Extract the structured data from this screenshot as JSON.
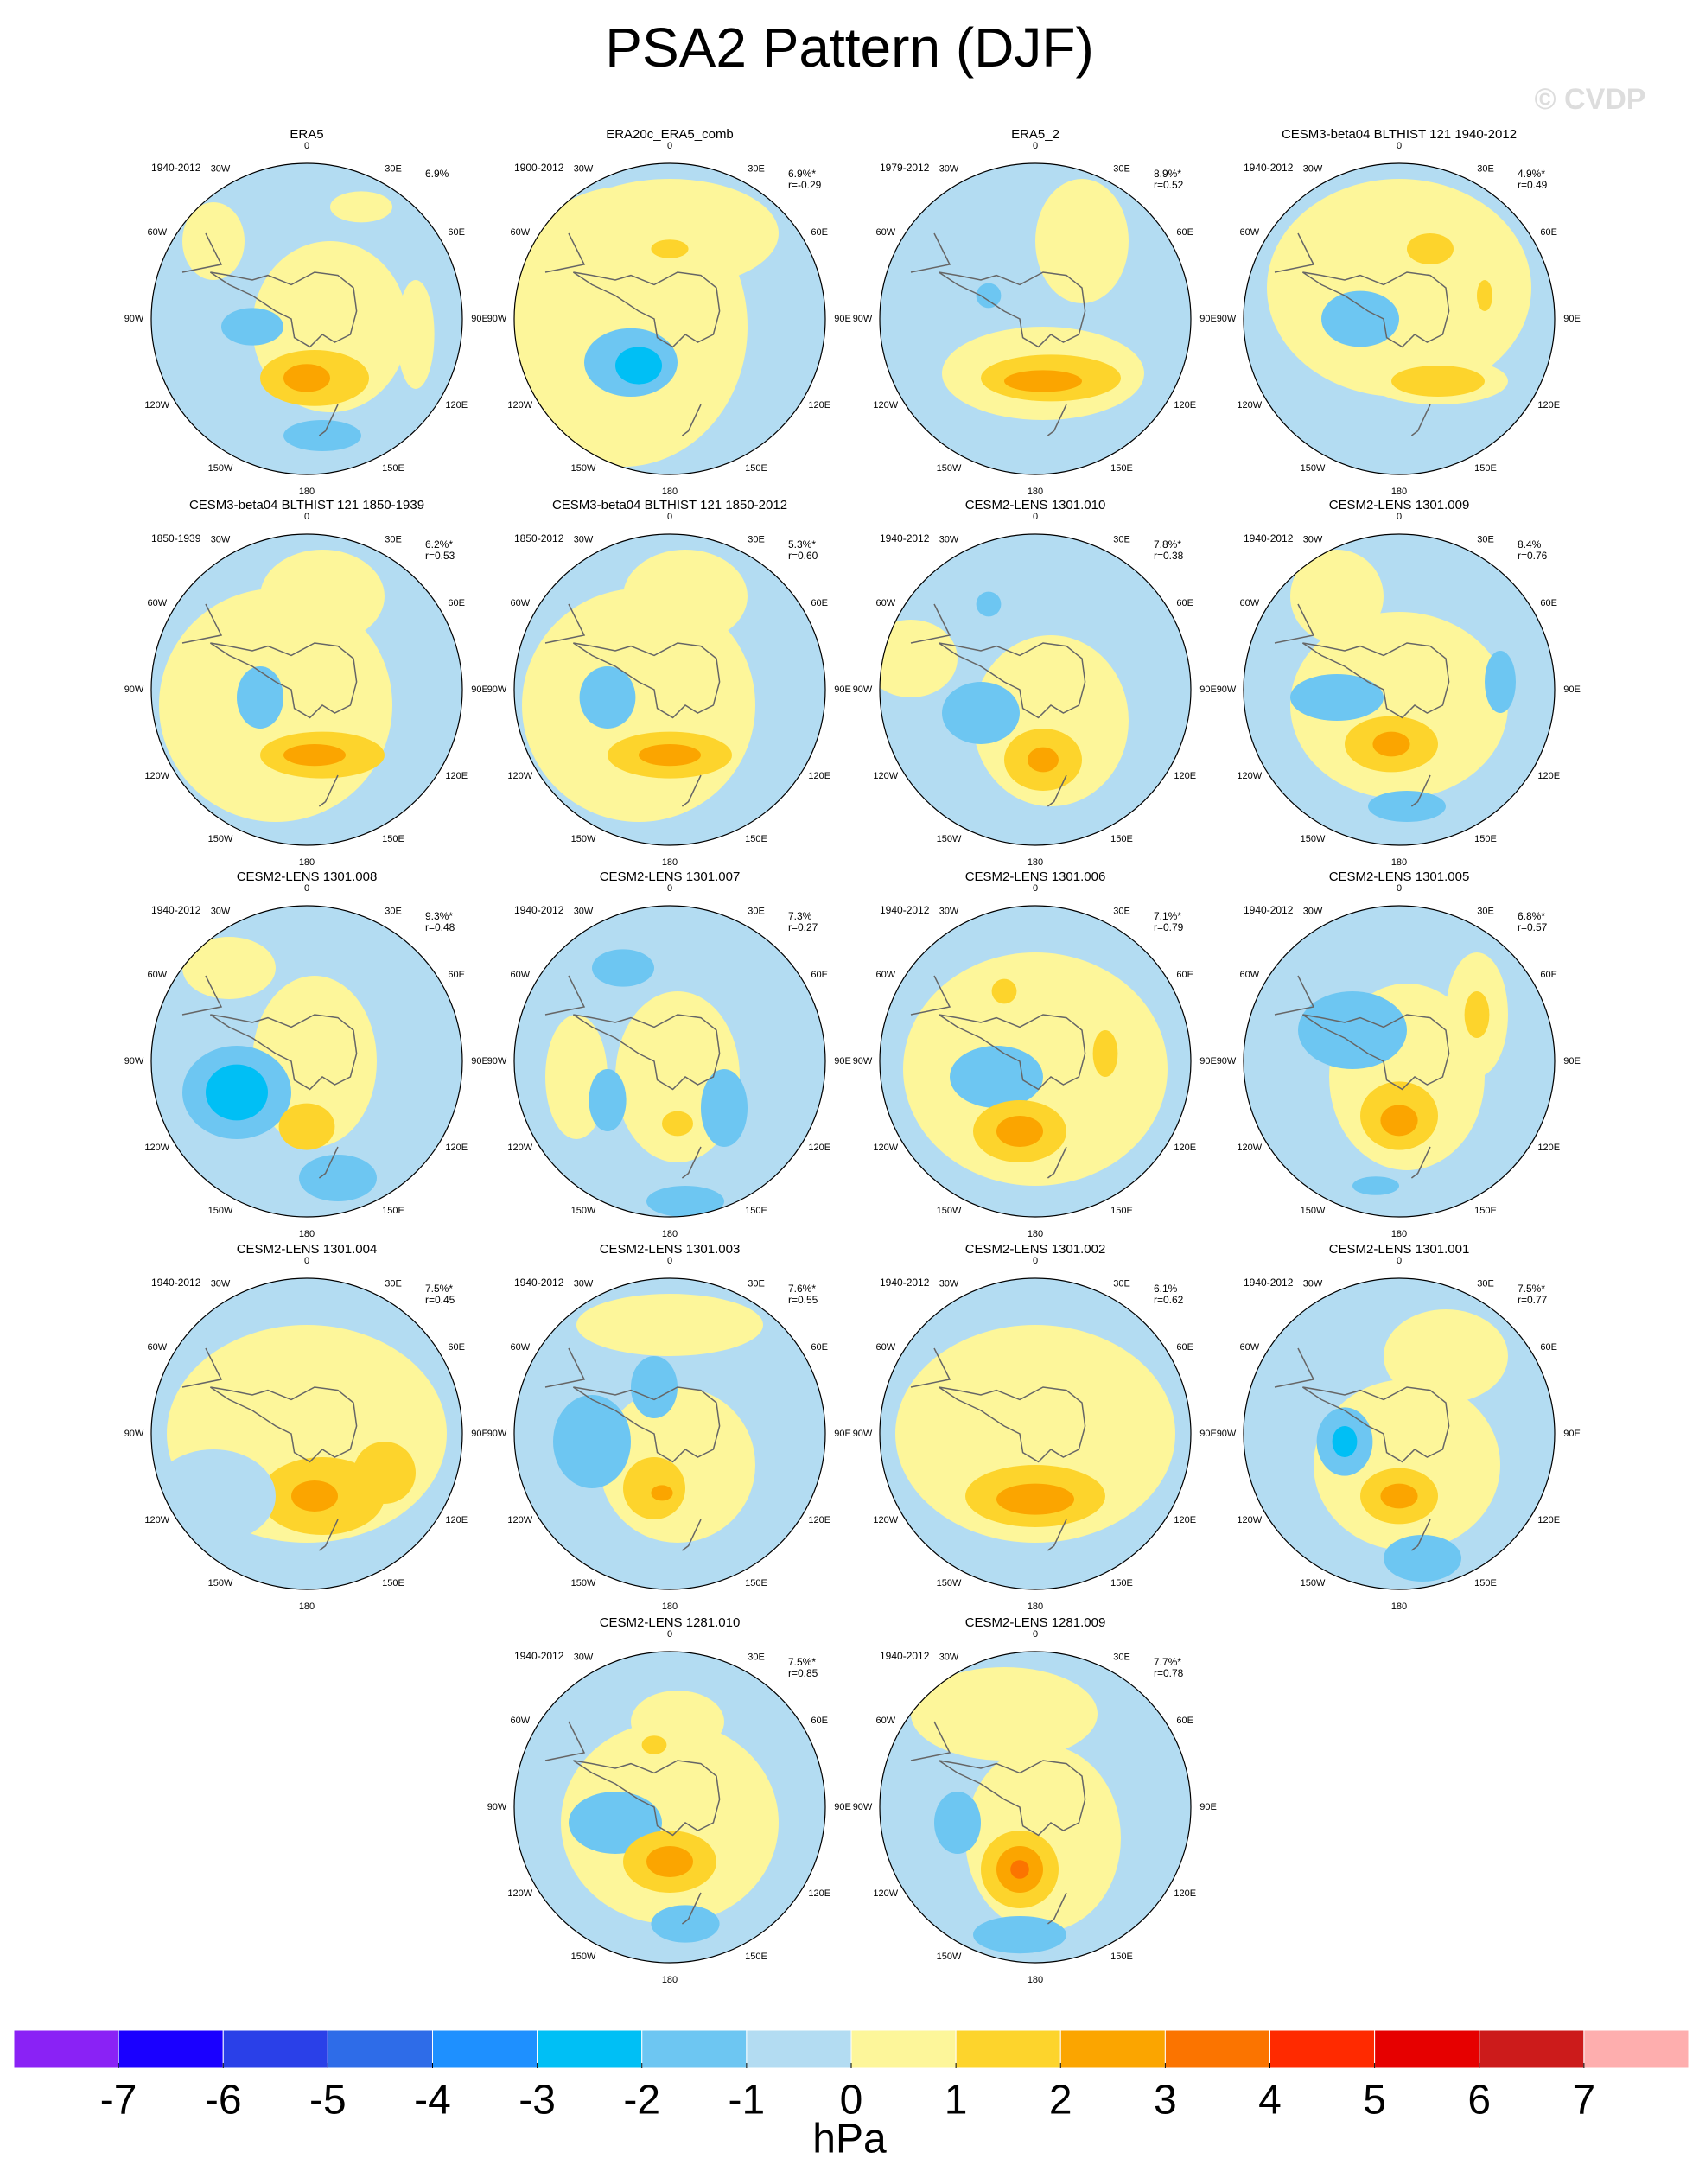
{
  "title": "PSA2 Pattern (DJF)",
  "watermark": "© CVDP",
  "longitude_labels": [
    "0",
    "30E",
    "60E",
    "90E",
    "120E",
    "150E",
    "180",
    "150W",
    "120W",
    "90W",
    "60W",
    "30W"
  ],
  "panels": [
    {
      "title": "ERA5",
      "period": "1940-2012",
      "percent": "6.9%"
    },
    {
      "title": "ERA20c_ERA5_comb",
      "period": "1900-2012",
      "percent": "6.9%*",
      "r": "r=-0.29"
    },
    {
      "title": "ERA5_2",
      "period": "1979-2012",
      "percent": "8.9%*",
      "r": "r=0.52"
    },
    {
      "title": "CESM3-beta04 BLTHIST 121 1940-2012",
      "period": "1940-2012",
      "percent": "4.9%*",
      "r": "r=0.49"
    },
    {
      "title": "CESM3-beta04 BLTHIST 121 1850-1939",
      "period": "1850-1939",
      "percent": "6.2%*",
      "r": "r=0.53"
    },
    {
      "title": "CESM3-beta04 BLTHIST 121 1850-2012",
      "period": "1850-2012",
      "percent": "5.3%*",
      "r": "r=0.60"
    },
    {
      "title": "CESM2-LENS 1301.010",
      "period": "1940-2012",
      "percent": "7.8%*",
      "r": "r=0.38"
    },
    {
      "title": "CESM2-LENS 1301.009",
      "period": "1940-2012",
      "percent": "8.4%",
      "r": "r=0.76"
    },
    {
      "title": "CESM2-LENS 1301.008",
      "period": "1940-2012",
      "percent": "9.3%*",
      "r": "r=0.48"
    },
    {
      "title": "CESM2-LENS 1301.007",
      "period": "1940-2012",
      "percent": "7.3%",
      "r": "r=0.27"
    },
    {
      "title": "CESM2-LENS 1301.006",
      "period": "1940-2012",
      "percent": "7.1%*",
      "r": "r=0.79"
    },
    {
      "title": "CESM2-LENS 1301.005",
      "period": "1940-2012",
      "percent": "6.8%*",
      "r": "r=0.57"
    },
    {
      "title": "CESM2-LENS 1301.004",
      "period": "1940-2012",
      "percent": "7.5%*",
      "r": "r=0.45"
    },
    {
      "title": "CESM2-LENS 1301.003",
      "period": "1940-2012",
      "percent": "7.6%*",
      "r": "r=0.55"
    },
    {
      "title": "CESM2-LENS 1301.002",
      "period": "1940-2012",
      "percent": "6.1%",
      "r": "r=0.62"
    },
    {
      "title": "CESM2-LENS 1301.001",
      "period": "1940-2012",
      "percent": "7.5%*",
      "r": "r=0.77"
    },
    {
      "title": "CESM2-LENS 1281.010",
      "period": "1940-2012",
      "percent": "7.5%*",
      "r": "r=0.85"
    },
    {
      "title": "CESM2-LENS 1281.009",
      "period": "1940-2012",
      "percent": "7.7%*",
      "r": "r=0.78"
    }
  ],
  "colorbar": {
    "colors": [
      "#8a22f5",
      "#1a00ff",
      "#2a40e8",
      "#2e6ce8",
      "#1e90ff",
      "#00bff5",
      "#6dc6f2",
      "#b3dcf2",
      "#fdf69a",
      "#fdd42c",
      "#fba500",
      "#fb7400",
      "#ff2a00",
      "#e60000",
      "#cc1b1b",
      "#feaeae"
    ],
    "ticks": [
      -7,
      -6,
      -5,
      -4,
      -3,
      -2,
      -1,
      0,
      1,
      2,
      3,
      4,
      5,
      6,
      7
    ],
    "label": "hPa"
  }
}
